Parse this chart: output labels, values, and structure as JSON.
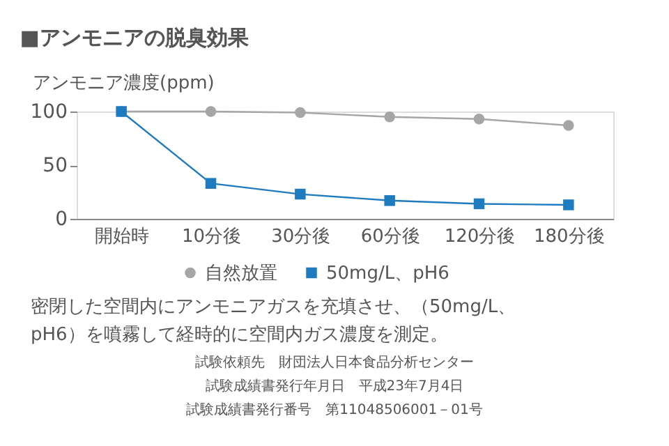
{
  "chart_data": {
    "type": "line",
    "title": "■アンモニアの脱臭効果",
    "ylabel": "アンモニア濃度(ppm)",
    "categories": [
      "開始時",
      "10分後",
      "30分後",
      "60分後",
      "120分後",
      "180分後"
    ],
    "series": [
      {
        "name": "自然放置",
        "color": "#a6a6a6",
        "marker": "circle",
        "values": [
          100,
          100,
          99,
          95,
          93,
          87
        ]
      },
      {
        "name": "50mg/L、pH6",
        "color": "#1f7bbf",
        "marker": "square",
        "values": [
          100,
          33,
          23,
          17,
          14,
          13
        ]
      }
    ],
    "ylim": [
      0,
      100
    ],
    "yticks": [
      0,
      50,
      100
    ],
    "grid": false,
    "legend": "bottom",
    "annotations": [
      "密閉した空間内にアンモニアガスを充填させ、（50mg/L、",
      "pH6）を噴霧して経時的に空間内ガス濃度を測定。",
      "試験依頼先　財団法人日本食品分析センター",
      "試験成績書発行年月日　平成23年7月4日",
      "試験成績書発行番号　第11048506001－01号"
    ]
  }
}
